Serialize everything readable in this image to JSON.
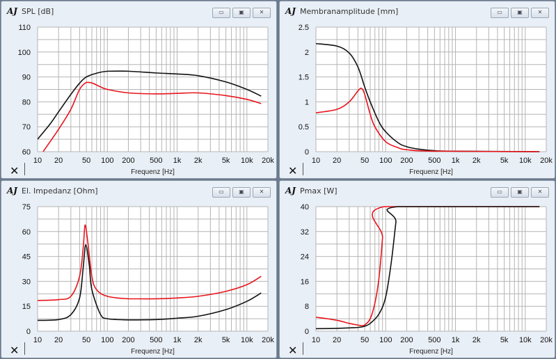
{
  "colors": {
    "series_red": "#e8141c",
    "series_black": "#111111",
    "grid": "#b4b4b4"
  },
  "window_buttons": {
    "minimize": "▭",
    "restore": "▣",
    "close": "✕"
  },
  "logo_text": "AJ",
  "chart_data": [
    {
      "id": "spl",
      "type": "line",
      "title": "SPL [dB]",
      "xlabel": "Frequenz [Hz]",
      "ylabel": "",
      "xscale": "log",
      "xlim": [
        10,
        20000
      ],
      "ylim": [
        60,
        110
      ],
      "ygrid_step": 5,
      "xticks": [
        10,
        20,
        50,
        100,
        200,
        500,
        1000,
        2000,
        5000,
        10000,
        20000
      ],
      "xtick_labels": [
        "10",
        "20",
        "50",
        "100",
        "200",
        "500",
        "1k",
        "2k",
        "5k",
        "10k",
        "20k"
      ],
      "yticks": [
        60,
        70,
        80,
        90,
        100,
        110
      ],
      "ytick_labels": [
        "60",
        "70",
        "80",
        "90",
        "100",
        "110"
      ],
      "grid": true,
      "series": [
        {
          "name": "black",
          "color": "#111111",
          "x": [
            10,
            15,
            20,
            30,
            40,
            50,
            70,
            100,
            200,
            500,
            1000,
            2000,
            5000,
            10000,
            16000
          ],
          "y": [
            65,
            71,
            76,
            83,
            87.5,
            90,
            91.5,
            92.3,
            92.3,
            91.6,
            91.2,
            90.5,
            88,
            85,
            82.3
          ]
        },
        {
          "name": "red",
          "color": "#e8141c",
          "x": [
            12,
            20,
            30,
            40,
            50,
            60,
            80,
            100,
            200,
            500,
            1000,
            2000,
            5000,
            10000,
            16000
          ],
          "y": [
            60,
            69,
            77,
            85,
            87.8,
            87.6,
            86,
            85,
            83.6,
            83.2,
            83.4,
            83.6,
            82.5,
            81,
            79.3
          ]
        }
      ]
    },
    {
      "id": "amp",
      "type": "line",
      "title": "Membranamplitude [mm]",
      "xlabel": "Frequenz [Hz]",
      "ylabel": "",
      "xscale": "log",
      "xlim": [
        10,
        20000
      ],
      "ylim": [
        0,
        2.5
      ],
      "ygrid_step": 0.25,
      "xticks": [
        10,
        20,
        50,
        100,
        200,
        500,
        1000,
        2000,
        5000,
        10000,
        20000
      ],
      "xtick_labels": [
        "10",
        "20",
        "50",
        "100",
        "200",
        "500",
        "1k",
        "2k",
        "5k",
        "10k",
        "20k"
      ],
      "yticks": [
        0,
        0.5,
        1,
        1.5,
        2,
        2.5
      ],
      "ytick_labels": [
        "0",
        "0.5",
        "1",
        "1.5",
        "2",
        "2.5"
      ],
      "grid": true,
      "series": [
        {
          "name": "black",
          "color": "#111111",
          "x": [
            10,
            20,
            30,
            40,
            50,
            60,
            80,
            100,
            150,
            200,
            300,
            500,
            1000,
            16000
          ],
          "y": [
            2.17,
            2.12,
            1.98,
            1.7,
            1.3,
            1.0,
            0.6,
            0.4,
            0.18,
            0.1,
            0.05,
            0.02,
            0.01,
            0
          ]
        },
        {
          "name": "red",
          "color": "#e8141c",
          "x": [
            10,
            20,
            30,
            40,
            45,
            50,
            60,
            70,
            100,
            150,
            200,
            500,
            16000
          ],
          "y": [
            0.78,
            0.85,
            1.0,
            1.22,
            1.27,
            1.15,
            0.75,
            0.5,
            0.2,
            0.08,
            0.04,
            0.01,
            0
          ]
        }
      ]
    },
    {
      "id": "imp",
      "type": "line",
      "title": "El. Impedanz [Ohm]",
      "xlabel": "Frequenz [Hz]",
      "ylabel": "",
      "xscale": "log",
      "xlim": [
        10,
        20000
      ],
      "ylim": [
        0,
        75
      ],
      "ygrid_step": 7.5,
      "xticks": [
        10,
        20,
        50,
        100,
        200,
        500,
        1000,
        2000,
        5000,
        10000,
        20000
      ],
      "xtick_labels": [
        "10",
        "20",
        "50",
        "100",
        "200",
        "500",
        "1k",
        "2k",
        "5k",
        "10k",
        "20k"
      ],
      "yticks": [
        0,
        15,
        30,
        45,
        60,
        75
      ],
      "ytick_labels": [
        "0",
        "15",
        "30",
        "45",
        "60",
        "75"
      ],
      "grid": true,
      "series": [
        {
          "name": "red",
          "color": "#e8141c",
          "x": [
            10,
            20,
            30,
            40,
            45,
            48,
            52,
            60,
            70,
            100,
            200,
            500,
            1000,
            2000,
            5000,
            10000,
            16000
          ],
          "y": [
            18.5,
            19,
            21,
            33,
            50,
            64,
            55,
            33,
            25,
            21,
            19.5,
            19.5,
            20,
            21,
            24,
            28,
            33
          ]
        },
        {
          "name": "black",
          "color": "#111111",
          "x": [
            10,
            20,
            30,
            40,
            45,
            49,
            55,
            60,
            80,
            100,
            200,
            500,
            1000,
            2000,
            5000,
            10000,
            16000
          ],
          "y": [
            6.5,
            7,
            10,
            20,
            38,
            52,
            40,
            25,
            10,
            7.5,
            6.8,
            7,
            7.8,
            9,
            13,
            18,
            23
          ]
        }
      ]
    },
    {
      "id": "pmax",
      "type": "line",
      "title": "Pmax [W]",
      "xlabel": "Frequenz [Hz]",
      "ylabel": "",
      "xscale": "log",
      "xlim": [
        10,
        20000
      ],
      "ylim": [
        0,
        40
      ],
      "ygrid_step": 4,
      "xticks": [
        10,
        20,
        50,
        100,
        200,
        500,
        1000,
        2000,
        5000,
        10000,
        20000
      ],
      "xtick_labels": [
        "10",
        "20",
        "50",
        "100",
        "200",
        "500",
        "1k",
        "2k",
        "5k",
        "10k",
        "20k"
      ],
      "yticks": [
        0,
        8,
        16,
        24,
        32,
        40
      ],
      "ytick_labels": [
        "0",
        "8",
        "16",
        "24",
        "32",
        "40"
      ],
      "grid": true,
      "series": [
        {
          "name": "red",
          "color": "#e8141c",
          "x": [
            10,
            20,
            30,
            45,
            50,
            60,
            70,
            80,
            90,
            95,
            16000
          ],
          "y": [
            4.5,
            3.5,
            2.5,
            1.8,
            2,
            4,
            9,
            17,
            30,
            40,
            40
          ]
        },
        {
          "name": "black",
          "color": "#111111",
          "x": [
            10,
            20,
            40,
            50,
            60,
            80,
            100,
            120,
            140,
            150,
            16000
          ],
          "y": [
            0.8,
            0.9,
            1.2,
            1.6,
            2.5,
            5.5,
            11,
            22,
            35,
            40,
            40
          ]
        }
      ]
    }
  ]
}
